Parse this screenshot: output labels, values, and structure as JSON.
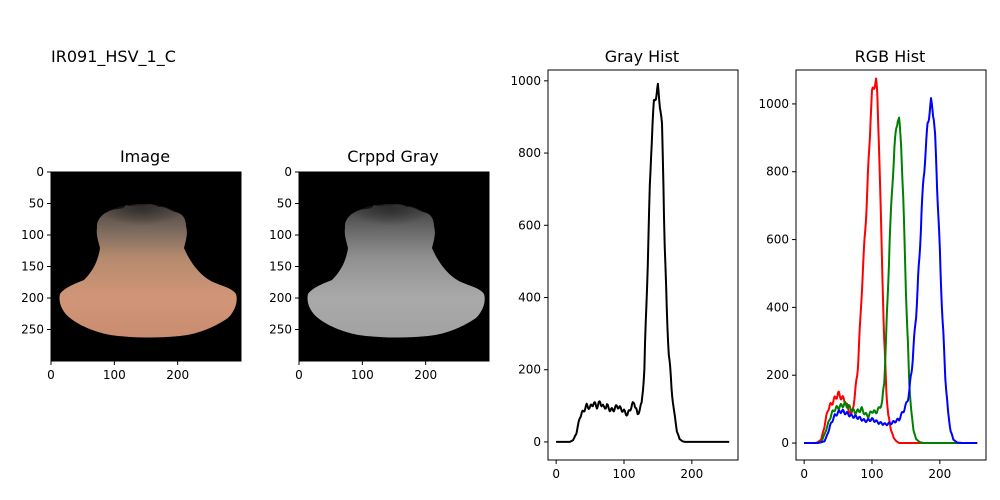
{
  "figure": {
    "suptitle": "IR091_HSV_1_C"
  },
  "panels": [
    {
      "title": "Image"
    },
    {
      "title": "Crppd Gray"
    },
    {
      "title": "Gray Hist"
    },
    {
      "title": "RGB Hist"
    }
  ],
  "chart_data": [
    {
      "type": "image",
      "title": "Image",
      "xticks": [
        0,
        100,
        200
      ],
      "yticks": [
        0,
        50,
        100,
        150,
        200,
        250
      ],
      "xlim": [
        0,
        300
      ],
      "ylim": [
        300,
        0
      ],
      "content": "cropped color photo of a specimen on black background"
    },
    {
      "type": "image",
      "title": "Crppd Gray",
      "xticks": [
        0,
        100,
        200
      ],
      "yticks": [
        0,
        50,
        100,
        150,
        200,
        250
      ],
      "xlim": [
        0,
        300
      ],
      "ylim": [
        300,
        0
      ],
      "content": "grayscale version of the cropped specimen image"
    },
    {
      "type": "line",
      "title": "Gray Hist",
      "xlim": [
        -12,
        268
      ],
      "ylim": [
        -50,
        1030
      ],
      "xticks": [
        0,
        100,
        200
      ],
      "yticks": [
        0,
        200,
        400,
        600,
        800,
        1000
      ],
      "series": [
        {
          "color": "#000000",
          "x": [
            0,
            10,
            20,
            25,
            30,
            35,
            40,
            45,
            50,
            55,
            60,
            65,
            70,
            75,
            80,
            85,
            90,
            95,
            100,
            105,
            110,
            115,
            118,
            120,
            123,
            126,
            130,
            133,
            136,
            138,
            140,
            142,
            144,
            146,
            148,
            150,
            152,
            154,
            156,
            158,
            160,
            163,
            166,
            170,
            174,
            178,
            182,
            186,
            190,
            200,
            220,
            240,
            255
          ],
          "y": [
            0,
            0,
            0,
            5,
            25,
            70,
            85,
            100,
            95,
            108,
            98,
            110,
            95,
            100,
            88,
            90,
            100,
            92,
            85,
            75,
            95,
            110,
            90,
            75,
            90,
            105,
            200,
            380,
            560,
            700,
            800,
            880,
            935,
            955,
            965,
            980,
            950,
            920,
            870,
            720,
            550,
            360,
            250,
            150,
            80,
            30,
            8,
            2,
            0,
            0,
            0,
            0,
            0
          ]
        }
      ]
    },
    {
      "type": "line",
      "title": "RGB Hist",
      "xlim": [
        -12,
        268
      ],
      "ylim": [
        -50,
        1100
      ],
      "xticks": [
        0,
        100,
        200
      ],
      "yticks": [
        0,
        200,
        400,
        600,
        800,
        1000
      ],
      "series": [
        {
          "color": "#ff0000",
          "x": [
            0,
            10,
            18,
            25,
            30,
            35,
            40,
            45,
            50,
            55,
            60,
            65,
            70,
            75,
            80,
            85,
            88,
            92,
            95,
            98,
            100,
            103,
            106,
            108,
            110,
            112,
            115,
            118,
            121,
            124,
            128,
            132,
            136,
            140,
            150,
            255
          ],
          "y": [
            0,
            0,
            0,
            10,
            50,
            100,
            115,
            130,
            145,
            135,
            125,
            100,
            85,
            140,
            250,
            450,
            560,
            700,
            830,
            960,
            1030,
            1055,
            1065,
            1020,
            900,
            750,
            520,
            300,
            160,
            80,
            40,
            15,
            5,
            0,
            0,
            0
          ]
        },
        {
          "color": "#008000",
          "x": [
            0,
            15,
            25,
            30,
            35,
            40,
            45,
            50,
            55,
            60,
            65,
            70,
            75,
            80,
            85,
            90,
            95,
            100,
            105,
            110,
            115,
            118,
            120,
            123,
            126,
            130,
            133,
            136,
            138,
            140,
            143,
            146,
            149,
            152,
            155,
            158,
            161,
            165,
            170,
            176,
            182,
            190,
            255
          ],
          "y": [
            0,
            0,
            2,
            25,
            55,
            85,
            100,
            105,
            110,
            115,
            108,
            100,
            90,
            95,
            100,
            85,
            80,
            95,
            90,
            100,
            120,
            180,
            280,
            420,
            600,
            760,
            870,
            930,
            960,
            950,
            880,
            720,
            520,
            330,
            180,
            90,
            40,
            12,
            3,
            0,
            0,
            0,
            0
          ]
        },
        {
          "color": "#0000ff",
          "x": [
            0,
            20,
            30,
            35,
            40,
            45,
            50,
            55,
            60,
            70,
            80,
            90,
            100,
            110,
            120,
            130,
            140,
            150,
            155,
            160,
            165,
            170,
            173,
            176,
            179,
            182,
            185,
            187,
            189,
            191,
            193,
            196,
            200,
            204,
            208,
            212,
            216,
            220,
            225,
            232,
            240,
            255
          ],
          "y": [
            0,
            0,
            5,
            30,
            60,
            80,
            90,
            95,
            90,
            80,
            75,
            65,
            70,
            60,
            55,
            60,
            70,
            110,
            150,
            250,
            380,
            550,
            680,
            780,
            860,
            940,
            980,
            1005,
            990,
            960,
            900,
            760,
            560,
            360,
            200,
            90,
            35,
            10,
            2,
            0,
            0,
            0
          ]
        }
      ]
    }
  ]
}
